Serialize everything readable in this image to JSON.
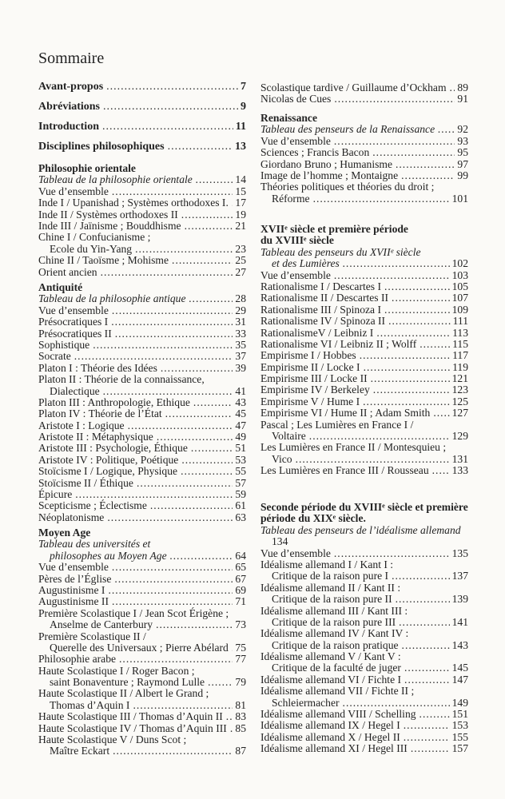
{
  "title": "Sommaire",
  "left_column": [
    {
      "kind": "bold",
      "items": [
        {
          "text": "Avant-propos",
          "page": "7"
        },
        {
          "text": "Abréviations",
          "page": "9"
        },
        {
          "text": "Introduction",
          "page": "11"
        },
        {
          "text": "Disciplines philosophiques",
          "page": "13"
        }
      ]
    },
    {
      "kind": "section",
      "heading": [
        "Philosophie orientale"
      ],
      "items": [
        {
          "text": "Tableau de la philosophie orientale",
          "page": "14",
          "italic": true
        },
        {
          "text": "Vue d’ensemble",
          "page": "15"
        },
        {
          "text": "Inde I / Upanishad ; Systèmes orthodoxes I.",
          "page": "17"
        },
        {
          "text": "Inde II / Systèmes orthodoxes II",
          "page": "19"
        },
        {
          "text": "Inde III / Jaïnisme ; Bouddhisme",
          "page": "21"
        },
        {
          "text": "Chine I / Confucianisme ;",
          "cont": "Ecole du Yin-Yang",
          "page": "23"
        },
        {
          "text": "Chine II / Taoïsme ; Mohisme",
          "page": "25"
        },
        {
          "text": "Orient ancien",
          "page": "27"
        }
      ]
    },
    {
      "kind": "section",
      "heading": [
        "Antiquité"
      ],
      "items": [
        {
          "text": "Tableau de la philosophie antique",
          "page": "28",
          "italic": true
        },
        {
          "text": "Vue d’ensemble",
          "page": "29"
        },
        {
          "text": "Présocratiques I",
          "page": "31"
        },
        {
          "text": "Présocratiques II",
          "page": "33"
        },
        {
          "text": "Sophistique",
          "page": "35"
        },
        {
          "text": "Socrate",
          "page": "37"
        },
        {
          "text": "Platon I : Théorie des Idées",
          "page": "39"
        },
        {
          "text": "Platon II : Théorie de la connaissance,",
          "cont": "Dialectique",
          "page": "41"
        },
        {
          "text": "Platon III : Anthropologie, Ethique",
          "page": "43"
        },
        {
          "text": "Platon IV : Théorie de l’État",
          "page": "45"
        },
        {
          "text": "Aristote I : Logique",
          "page": "47"
        },
        {
          "text": "Aristote II : Métaphysique",
          "page": "49"
        },
        {
          "text": "Aristote III : Psychologie, Éthique",
          "page": "51"
        },
        {
          "text": "Aristote IV : Politique, Poétique",
          "page": "53"
        },
        {
          "text": "Stoïcisme I / Logique, Physique",
          "page": "55"
        },
        {
          "text": "Stoïcisme II / Éthique",
          "page": "57"
        },
        {
          "text": "Épicure",
          "page": "59"
        },
        {
          "text": "Scepticisme ; Éclectisme",
          "page": "61"
        },
        {
          "text": "Néoplatonisme",
          "page": "63"
        }
      ]
    },
    {
      "kind": "section",
      "heading": [
        "Moyen Age"
      ],
      "items": [
        {
          "text": "Tableau des universités et",
          "cont": "philosophes au Moyen Age",
          "page": "64",
          "italic": true
        },
        {
          "text": "Vue d’ensemble",
          "page": "65"
        },
        {
          "text": "Pères de l’Église",
          "page": "67"
        },
        {
          "text": "Augustinisme I",
          "page": "69"
        },
        {
          "text": "Augustinisme II",
          "page": "71"
        },
        {
          "text": "Première Scolastique I / Jean Scot Érigène ;",
          "cont": "Anselme de Canterbury",
          "page": "73"
        },
        {
          "text": "Première Scolastique II /",
          "cont": "Querelle des Universaux ; Pierre Abélard",
          "page": "75"
        },
        {
          "text": "Philosophie arabe",
          "page": "77"
        },
        {
          "text": "Haute Scolastique I / Roger Bacon ;",
          "cont": "saint Bonaventure ; Raymond Lulle",
          "page": "79"
        },
        {
          "text": "Haute Scolastique II / Albert le Grand ;",
          "cont": "Thomas d’Aquin I",
          "page": "81"
        },
        {
          "text": "Haute Scolastique III / Thomas d’Aquin II",
          "page": "83"
        },
        {
          "text": "Haute Scolastique IV / Thomas d’Aquin III",
          "page": "85"
        },
        {
          "text": "Haute Scolastique V / Duns Scot ;",
          "cont": "Maître Eckart",
          "page": "87"
        }
      ]
    }
  ],
  "right_column": [
    {
      "kind": "section",
      "heading": [],
      "items": [
        {
          "text": "Scolastique tardive / Guillaume d’Ockham",
          "page": "89"
        },
        {
          "text": "Nicolas de Cues",
          "page": "91"
        }
      ]
    },
    {
      "kind": "section",
      "heading": [
        "Renaissance"
      ],
      "items": [
        {
          "text": "Tableau des penseurs de la Renaissance",
          "page": "92",
          "italic": true
        },
        {
          "text": "Vue d’ensemble",
          "page": "93"
        },
        {
          "text": "Sciences ; Francis Bacon",
          "page": "95"
        },
        {
          "text": "Giordano Bruno ; Humanisme",
          "page": "97"
        },
        {
          "text": "Image de l’homme ; Montaigne",
          "page": "99"
        },
        {
          "text": "Théories politiques et théories du droit ;",
          "cont": "Réforme",
          "page": "101"
        }
      ]
    },
    {
      "kind": "section",
      "heading": [
        "XVIIᵉ siècle et première période",
        "du XVIIIᵉ siècle"
      ],
      "items": [
        {
          "text": "Tableau des penseurs du XVIIᵉ siècle",
          "cont": "et des Lumières",
          "page": "102",
          "italic": true
        },
        {
          "text": "Vue d’ensemble",
          "page": "103"
        },
        {
          "text": "Rationalisme I / Descartes I",
          "page": "105"
        },
        {
          "text": "Rationalisme II / Descartes II",
          "page": "107"
        },
        {
          "text": "Rationalisme III / Spinoza I",
          "page": "109"
        },
        {
          "text": "Rationalisme IV / Spinoza II",
          "page": "111"
        },
        {
          "text": "RationalismeV / Leibniz I",
          "page": "113"
        },
        {
          "text": "Rationalisme VI / Leibniz II ; Wolff",
          "page": "115"
        },
        {
          "text": "Empirisme I / Hobbes",
          "page": "117"
        },
        {
          "text": "Empirisme II / Locke I",
          "page": "119"
        },
        {
          "text": "Empirisme III / Locke II",
          "page": "121"
        },
        {
          "text": "Empirisme IV / Berkeley",
          "page": "123"
        },
        {
          "text": "Empirisme V / Hume I",
          "page": "125"
        },
        {
          "text": "Empirisme VI / Hume II ; Adam Smith",
          "page": "127"
        },
        {
          "text": "Pascal ; Les Lumières en France I /",
          "cont": "Voltaire",
          "page": "129"
        },
        {
          "text": "Les Lumières en France II / Montesquieu ;",
          "cont": "Vico",
          "page": "131"
        },
        {
          "text": "Les Lumières en France III / Rousseau",
          "page": "133"
        }
      ]
    },
    {
      "kind": "section",
      "heading": [
        "Seconde période du XVIIIᵉ siècle et première",
        "période du XIXᵉ siècle."
      ],
      "items": [
        {
          "text": "Tableau des penseurs de l’idéalisme allemand",
          "page": "134",
          "italic": true,
          "page_on_next_line": true
        },
        {
          "text": "Vue d’ensemble",
          "page": "135"
        },
        {
          "text": "Idéalisme allemand I / Kant I :",
          "cont": "Critique de la raison pure I",
          "page": "137"
        },
        {
          "text": "Idéalisme allemand II / Kant II :",
          "cont": "Critique de la raison pure II",
          "page": "139"
        },
        {
          "text": "Idéalisme allemand III / Kant III :",
          "cont": "Critique de la raison pure III",
          "page": "141"
        },
        {
          "text": "Idéalisme allemand IV / Kant IV :",
          "cont": "Critique de la raison pratique",
          "page": "143"
        },
        {
          "text": "Idéalisme allemand V / Kant V :",
          "cont": "Critique de la faculté de juger",
          "page": "145"
        },
        {
          "text": "Idéalisme allemand VI / Fichte I",
          "page": "147"
        },
        {
          "text": "Idéalisme allemand VII / Fichte II ;",
          "cont": "Schleiermacher",
          "page": "149"
        },
        {
          "text": "Idéalisme allemand VIII / Schelling",
          "page": "151"
        },
        {
          "text": "Idéalisme allemand IX / Hegel I",
          "page": "153"
        },
        {
          "text": "Idéalisme allemand X / Hegel II",
          "page": "155"
        },
        {
          "text": "Idéalisme allemand XI / Hegel III",
          "page": "157"
        }
      ]
    }
  ]
}
